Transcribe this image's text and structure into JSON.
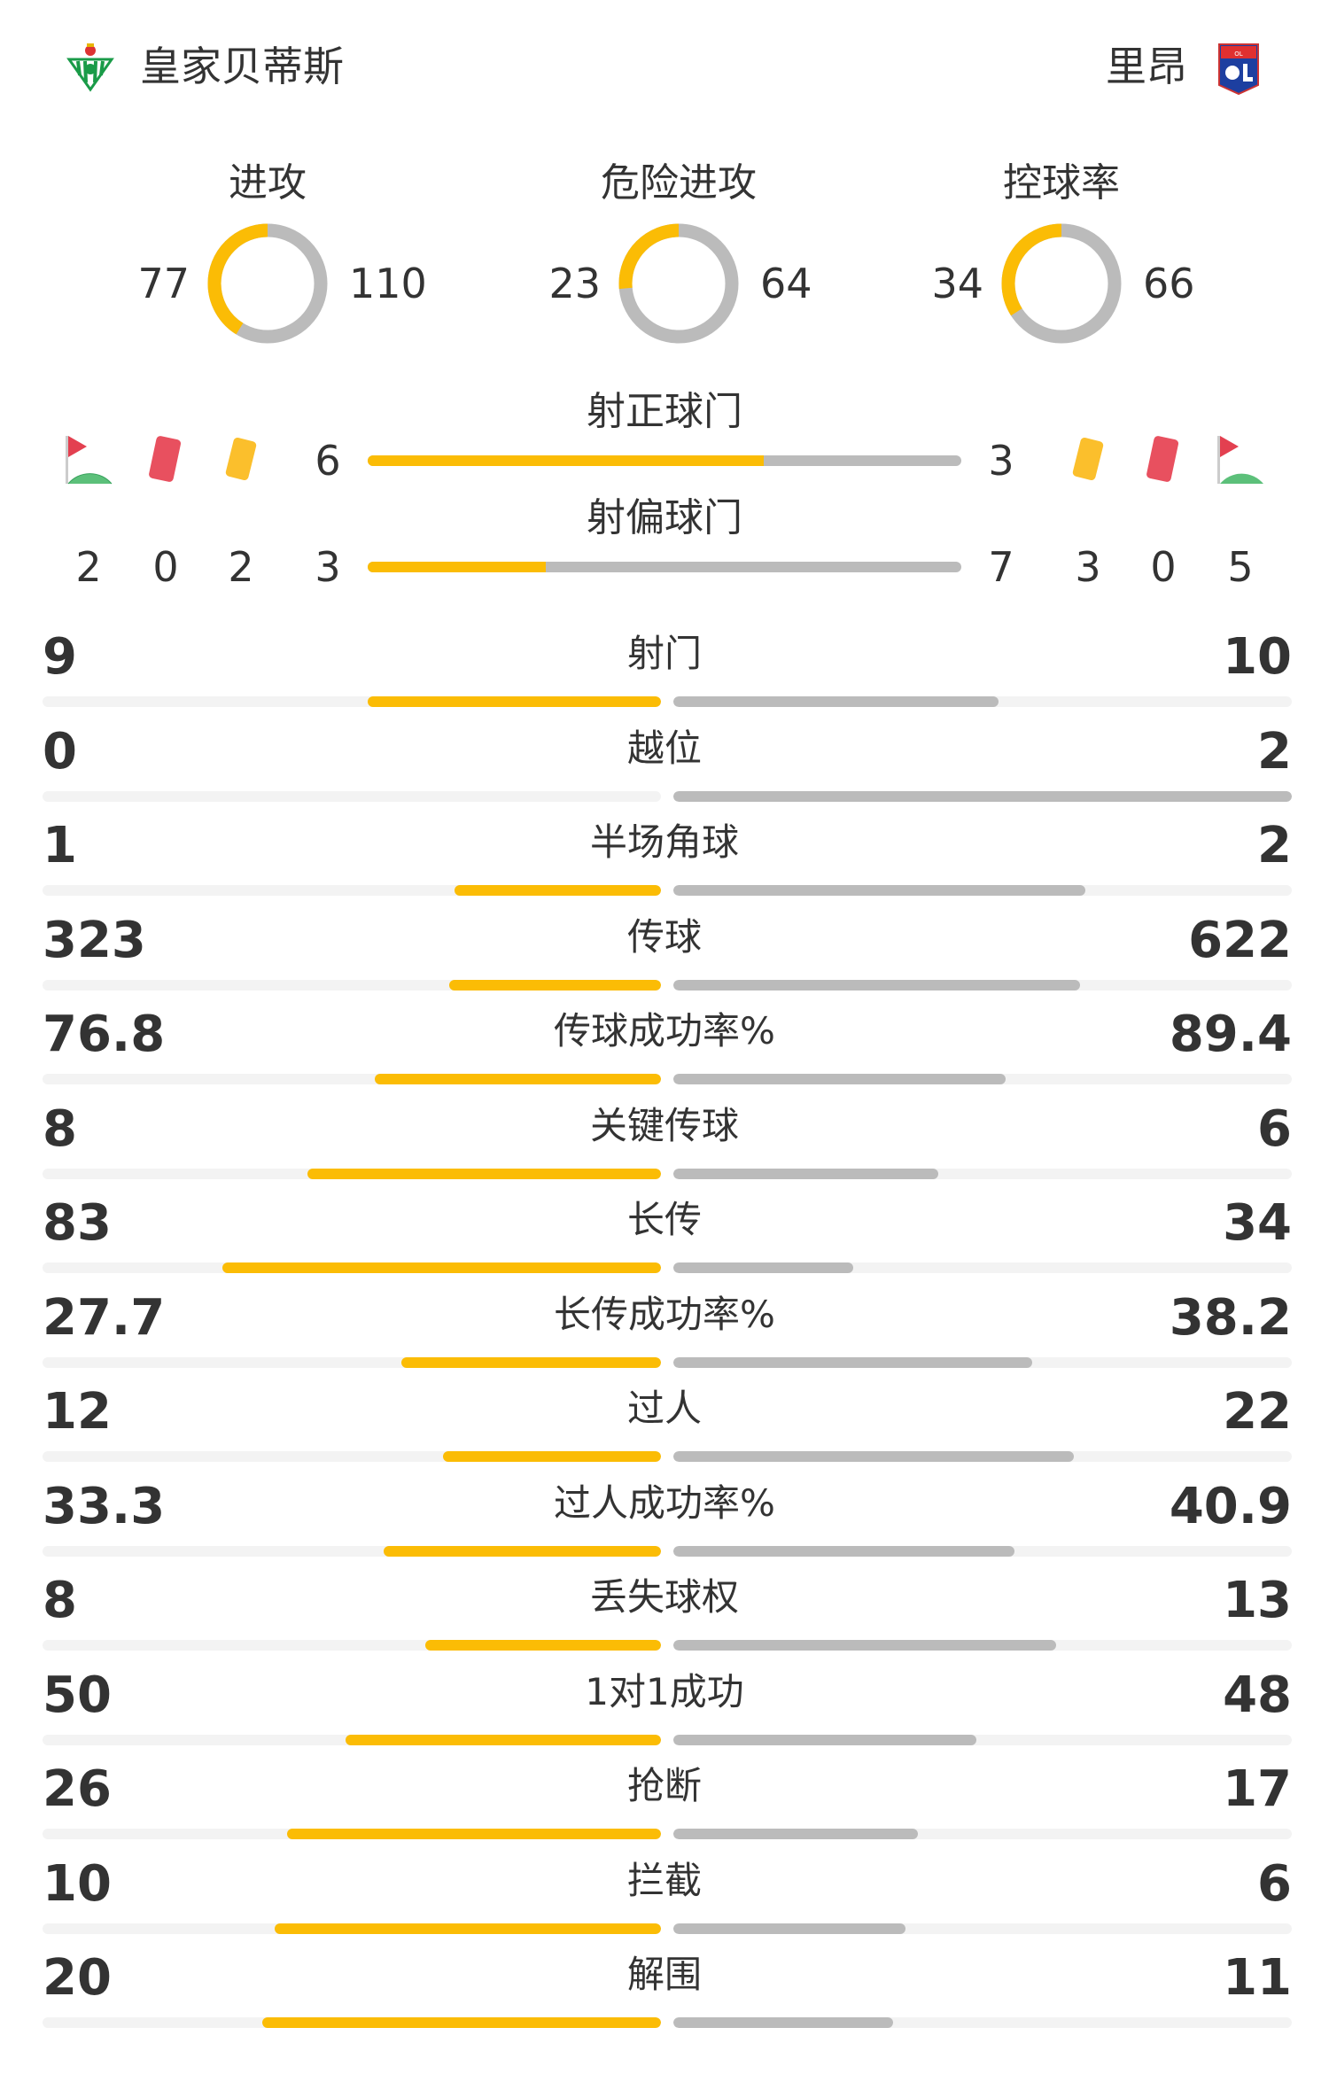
{
  "header": {
    "home_team": "皇家贝蒂斯",
    "away_team": "里昂",
    "home_logo": "real-betis-crest",
    "away_logo": "olympique-lyonnais-crest"
  },
  "colors": {
    "home": "#fbbc05",
    "away": "#bbbbbb",
    "track": "#f3f3f3"
  },
  "donuts": [
    {
      "title": "进攻",
      "home": "77",
      "away": "110"
    },
    {
      "title": "危险进攻",
      "home": "23",
      "away": "64"
    },
    {
      "title": "控球率",
      "home": "34",
      "away": "66"
    }
  ],
  "shots_on_target": {
    "title": "射正球门",
    "home": "6",
    "away": "3"
  },
  "shots_off_target": {
    "title": "射偏球门",
    "home": "3",
    "away": "7"
  },
  "counts": {
    "home": {
      "corners": "2",
      "red_cards": "0",
      "yellow_cards": "2"
    },
    "away": {
      "yellow_cards": "3",
      "red_cards": "0",
      "corners": "5"
    }
  },
  "stats": [
    {
      "label": "射门",
      "home": "9",
      "away": "10"
    },
    {
      "label": "越位",
      "home": "0",
      "away": "2"
    },
    {
      "label": "半场角球",
      "home": "1",
      "away": "2"
    },
    {
      "label": "传球",
      "home": "323",
      "away": "622"
    },
    {
      "label": "传球成功率%",
      "home": "76.8",
      "away": "89.4"
    },
    {
      "label": "关键传球",
      "home": "8",
      "away": "6"
    },
    {
      "label": "长传",
      "home": "83",
      "away": "34"
    },
    {
      "label": "长传成功率%",
      "home": "27.7",
      "away": "38.2"
    },
    {
      "label": "过人",
      "home": "12",
      "away": "22"
    },
    {
      "label": "过人成功率%",
      "home": "33.3",
      "away": "40.9"
    },
    {
      "label": "丢失球权",
      "home": "8",
      "away": "13"
    },
    {
      "label": "1对1成功",
      "home": "50",
      "away": "48"
    },
    {
      "label": "抢断",
      "home": "26",
      "away": "17"
    },
    {
      "label": "拦截",
      "home": "10",
      "away": "6"
    },
    {
      "label": "解围",
      "home": "20",
      "away": "11"
    }
  ]
}
